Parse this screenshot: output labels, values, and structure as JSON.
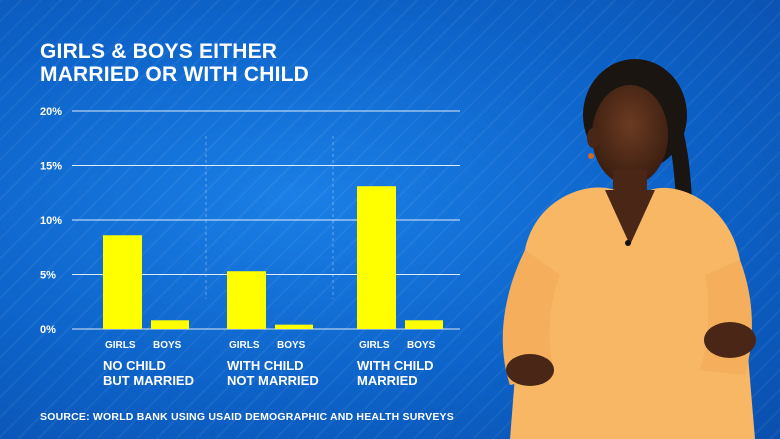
{
  "chart_data": {
    "type": "bar",
    "title": "GIRLS & BOYS EITHER MARRIED OR WITH CHILD",
    "title_lines": [
      "GIRLS & BOYS EITHER",
      "MARRIED OR WITH CHILD"
    ],
    "ylim": [
      0,
      20
    ],
    "yticks": [
      0,
      5,
      10,
      15,
      20
    ],
    "ytick_labels": [
      "0%",
      "5%",
      "10%",
      "15%",
      "20%"
    ],
    "groups": [
      {
        "name_lines": [
          "NO CHILD",
          "BUT MARRIED"
        ],
        "categories": [
          "GIRLS",
          "BOYS"
        ],
        "values": [
          8.6,
          0.8
        ]
      },
      {
        "name_lines": [
          "WITH CHILD",
          "NOT MARRIED"
        ],
        "categories": [
          "GIRLS",
          "BOYS"
        ],
        "values": [
          5.3,
          0.4
        ]
      },
      {
        "name_lines": [
          "WITH CHILD",
          "MARRIED"
        ],
        "categories": [
          "GIRLS",
          "BOYS"
        ],
        "values": [
          13.1,
          0.8
        ]
      }
    ],
    "bar_color": "#ffff00",
    "source": "SOURCE: WORLD BANK USING USAID DEMOGRAPHIC AND HEALTH SURVEYS"
  },
  "colors": {
    "background": "#0d63c9",
    "bar": "#ffff00",
    "text": "#ffffff"
  }
}
